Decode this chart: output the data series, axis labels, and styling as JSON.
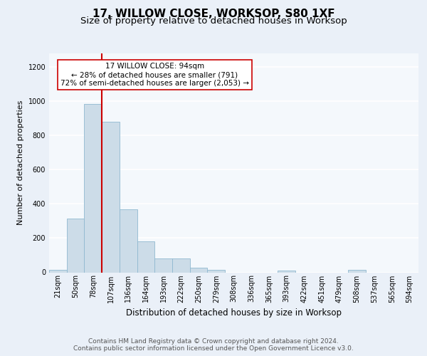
{
  "title": "17, WILLOW CLOSE, WORKSOP, S80 1XF",
  "subtitle": "Size of property relative to detached houses in Worksop",
  "xlabel": "Distribution of detached houses by size in Worksop",
  "ylabel": "Number of detached properties",
  "bin_labels": [
    "21sqm",
    "50sqm",
    "78sqm",
    "107sqm",
    "136sqm",
    "164sqm",
    "193sqm",
    "222sqm",
    "250sqm",
    "279sqm",
    "308sqm",
    "336sqm",
    "365sqm",
    "393sqm",
    "422sqm",
    "451sqm",
    "479sqm",
    "508sqm",
    "537sqm",
    "565sqm",
    "594sqm"
  ],
  "bar_heights": [
    15,
    315,
    985,
    880,
    370,
    180,
    80,
    80,
    25,
    15,
    0,
    0,
    0,
    10,
    0,
    0,
    0,
    15,
    0,
    0,
    0
  ],
  "bar_color": "#ccdce8",
  "bar_edge_color": "#90b8d0",
  "vline_color": "#cc0000",
  "annotation_text": "17 WILLOW CLOSE: 94sqm\n← 28% of detached houses are smaller (791)\n72% of semi-detached houses are larger (2,053) →",
  "annotation_box_color": "#ffffff",
  "annotation_box_edge": "#cc0000",
  "ylim": [
    0,
    1280
  ],
  "yticks": [
    0,
    200,
    400,
    600,
    800,
    1000,
    1200
  ],
  "footer": "Contains HM Land Registry data © Crown copyright and database right 2024.\nContains public sector information licensed under the Open Government Licence v3.0.",
  "bg_color": "#eaf0f8",
  "plot_bg_color": "#f4f8fc",
  "grid_color": "#ffffff",
  "title_fontsize": 11,
  "subtitle_fontsize": 9.5,
  "label_fontsize": 8,
  "tick_fontsize": 7,
  "footer_fontsize": 6.5
}
